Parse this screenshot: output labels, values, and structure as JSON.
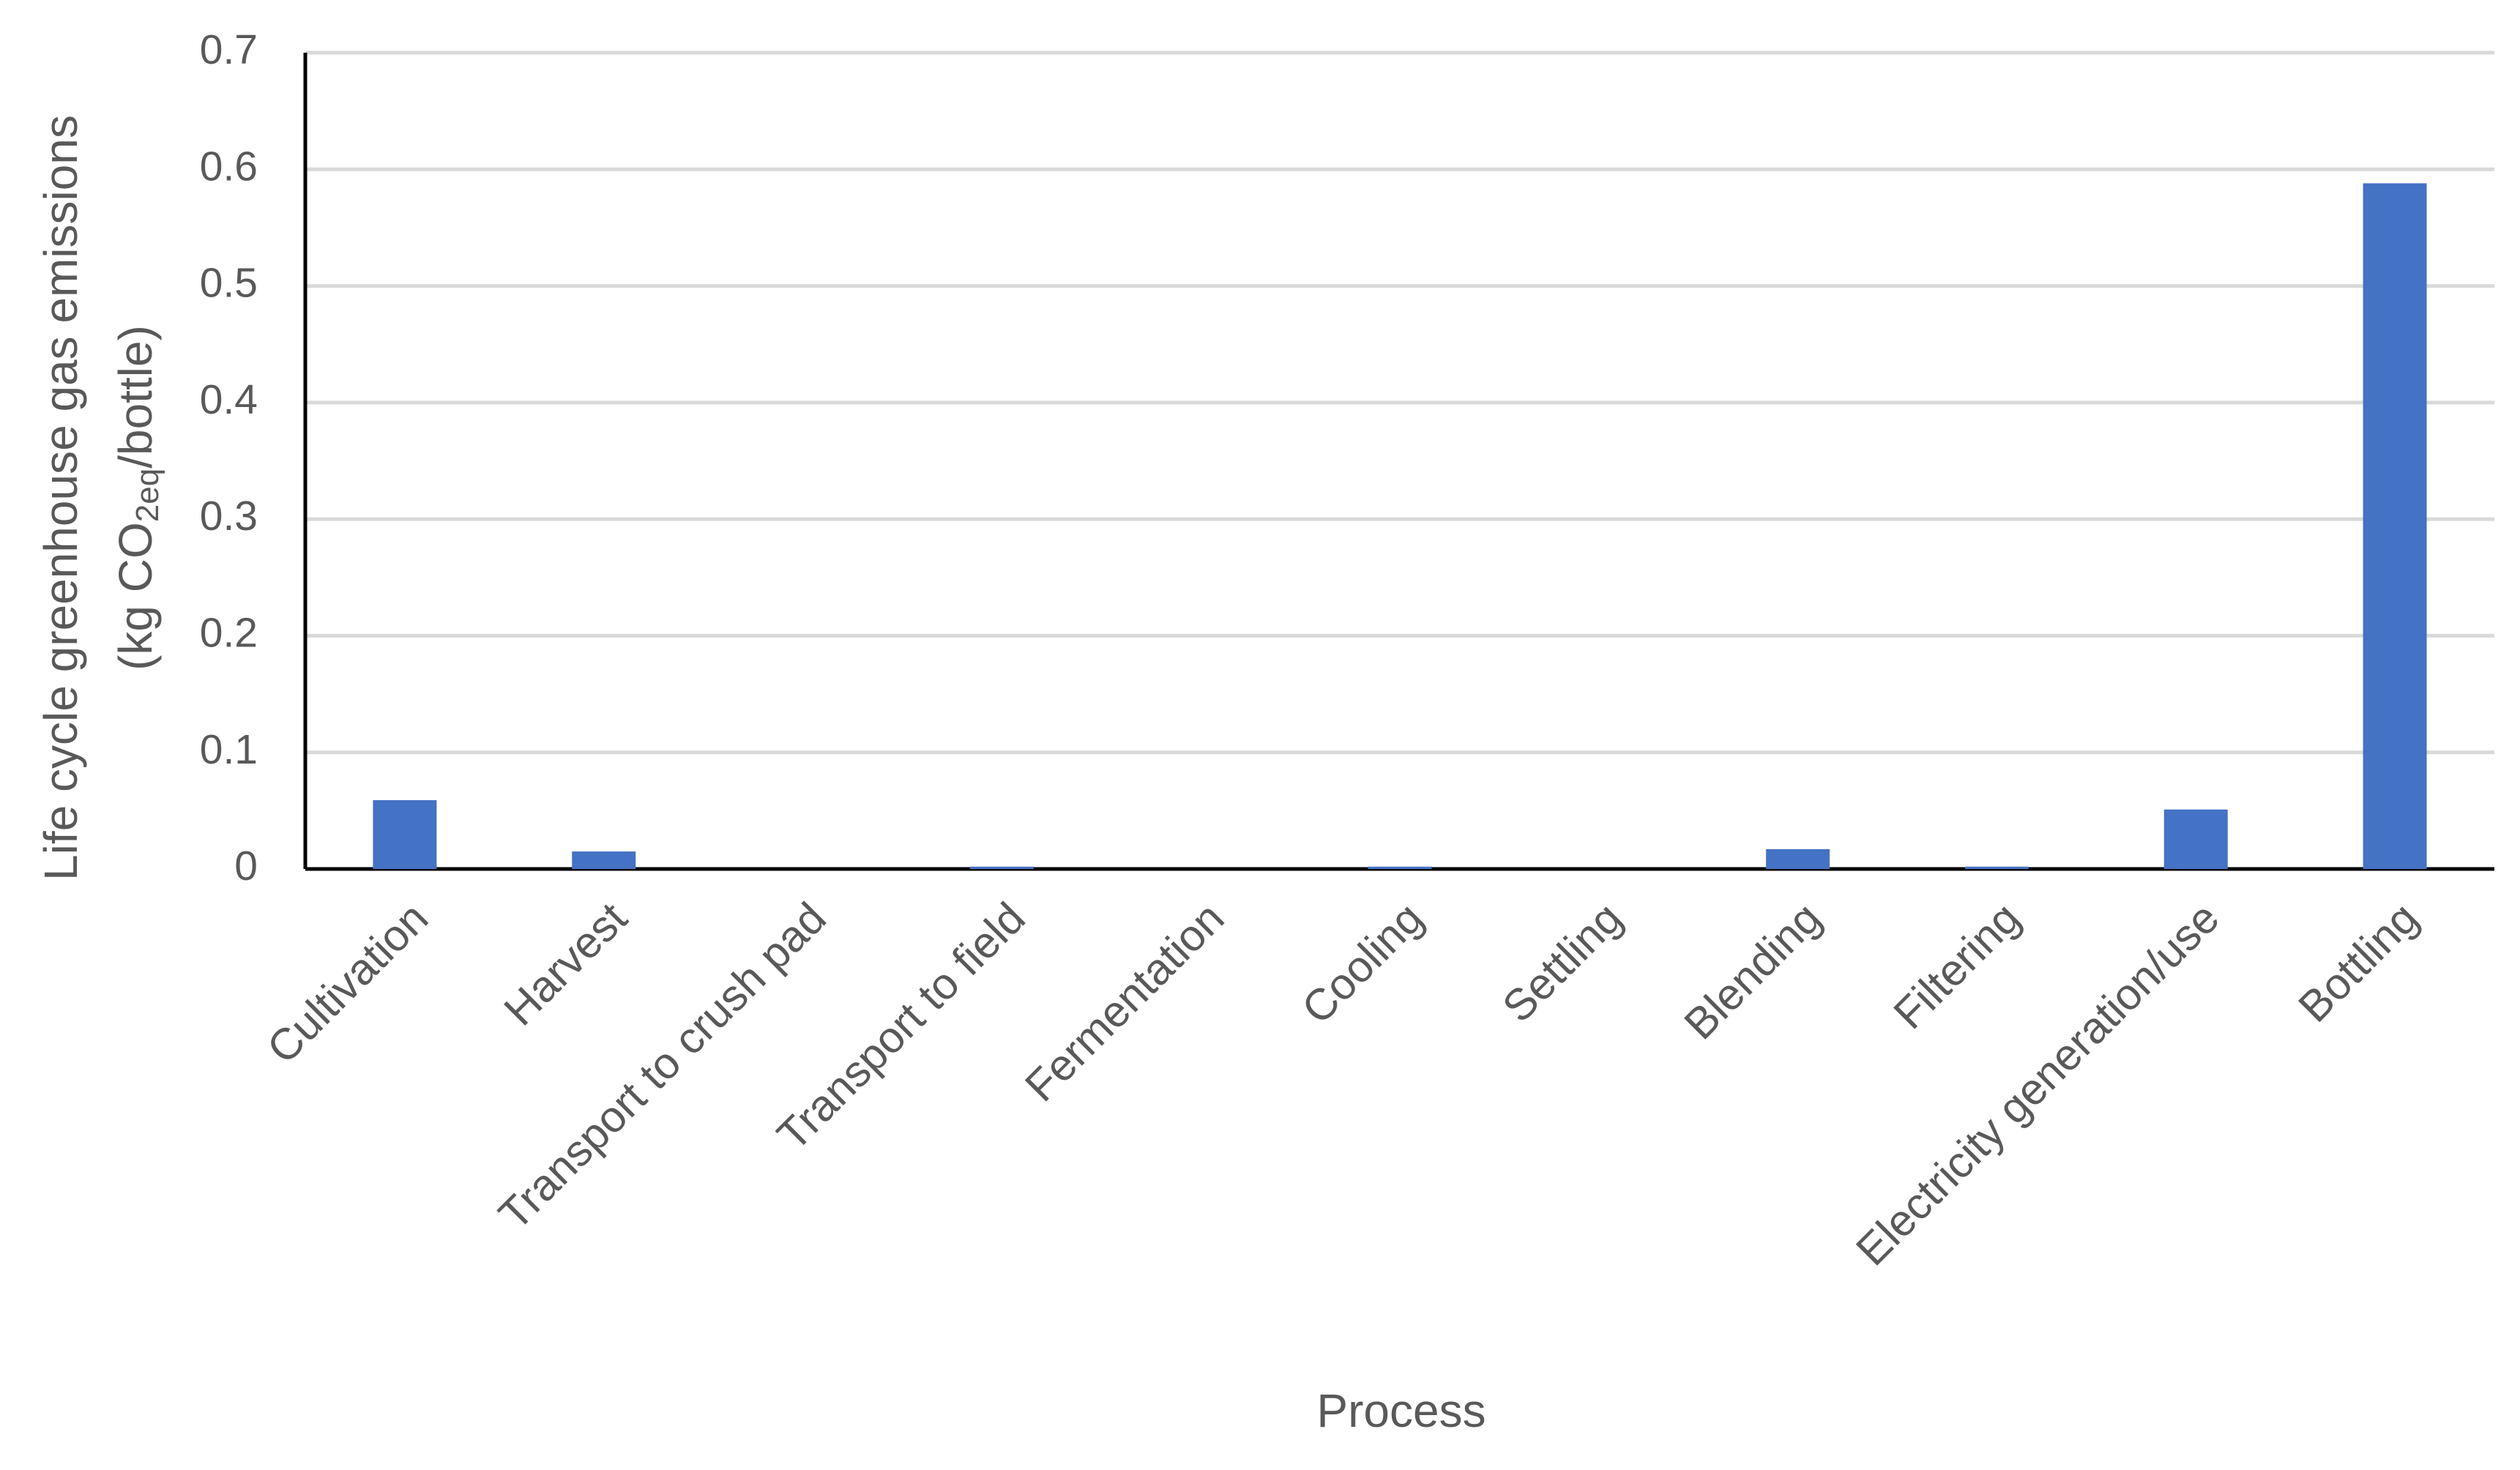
{
  "chart_data": {
    "type": "bar",
    "y_label": "Life cycle greenhouse gas emissions",
    "y_label_unit": [
      "(kg CO",
      "2eq",
      "/bottle)"
    ],
    "x_label": "Process",
    "categories": [
      "Cultivation",
      "Harvest",
      "Transport to crush pad",
      "Transport to field",
      "Fermentation",
      "Cooling",
      "Settling",
      "Blending",
      "Filtering",
      "Electricity generation/use",
      "Bottling"
    ],
    "values": [
      0.059,
      0.015,
      0,
      0.002,
      0,
      0.002,
      0,
      0.017,
      0.002,
      0.051,
      0.588
    ],
    "color": "#4472c4",
    "ylim": [
      0,
      0.7
    ],
    "yticks": [
      0,
      0.1,
      0.2,
      0.3,
      0.4,
      0.5,
      0.6,
      0.7
    ],
    "grid": true
  }
}
